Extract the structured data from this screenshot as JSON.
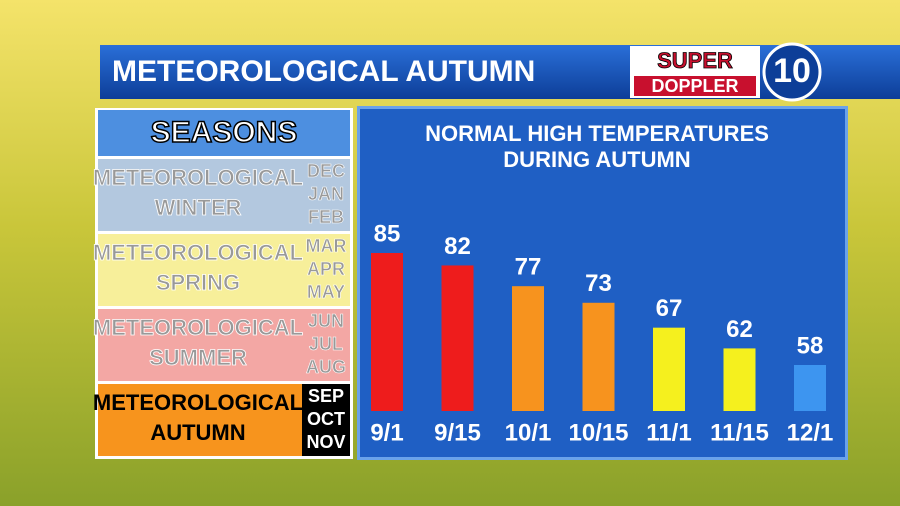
{
  "header": {
    "title": "METEOROLOGICAL AUTUMN",
    "logo": {
      "super": "SUPER",
      "doppler": "DOPPLER",
      "number": "10"
    }
  },
  "seasons": {
    "title": "SEASONS",
    "rows": [
      {
        "name": [
          "METEOROLOGICAL",
          "WINTER"
        ],
        "months": [
          "DEC",
          "JAN",
          "FEB"
        ],
        "color": "#b3c8df"
      },
      {
        "name": [
          "METEOROLOGICAL",
          "SPRING"
        ],
        "months": [
          "MAR",
          "APR",
          "MAY"
        ],
        "color": "#f7ef9a"
      },
      {
        "name": [
          "METEOROLOGICAL",
          "SUMMER"
        ],
        "months": [
          "JUN",
          "JUL",
          "AUG"
        ],
        "color": "#f3a7a4"
      },
      {
        "name": [
          "METEOROLOGICAL",
          "AUTUMN"
        ],
        "months": [
          "SEP",
          "OCT",
          "NOV"
        ],
        "color": "#f7941d"
      }
    ]
  },
  "chart_data": {
    "type": "bar",
    "title": [
      "NORMAL HIGH TEMPERATURES",
      "DURING AUTUMN"
    ],
    "categories": [
      "9/1",
      "9/15",
      "10/1",
      "10/15",
      "11/1",
      "11/15",
      "12/1"
    ],
    "values": [
      85,
      82,
      77,
      73,
      67,
      62,
      58
    ],
    "colors": [
      "#ee1c1c",
      "#ee1c1c",
      "#f7931e",
      "#f7931e",
      "#f5f01e",
      "#f5f01e",
      "#3d95f0"
    ]
  }
}
